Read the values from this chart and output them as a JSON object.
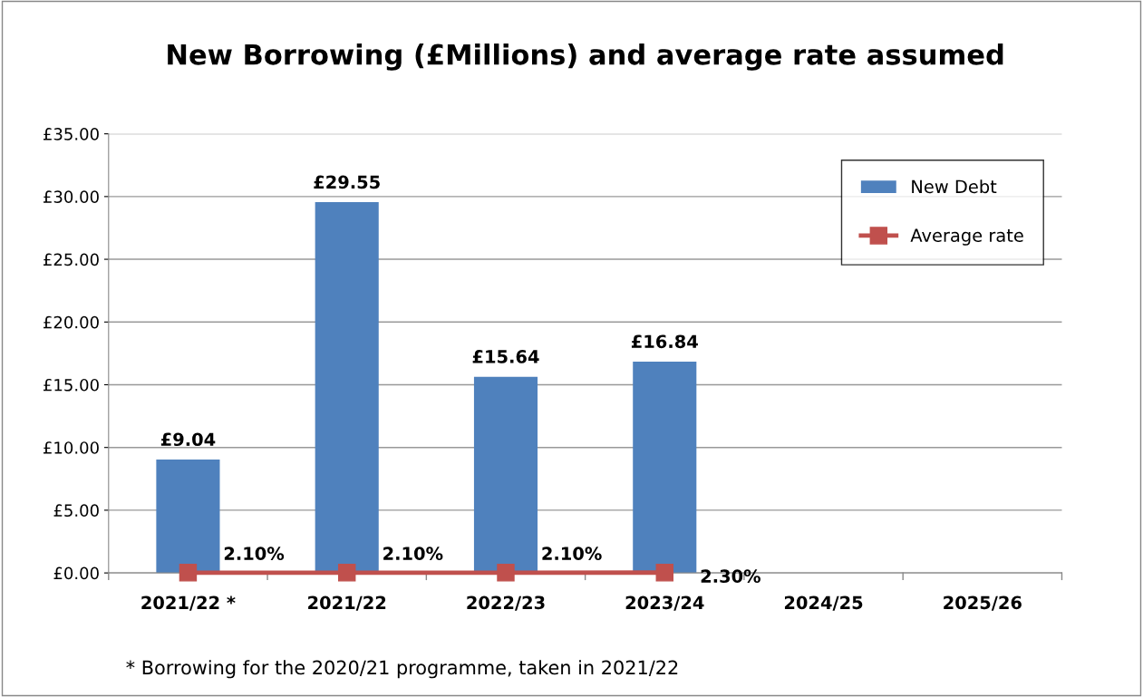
{
  "chart_data": {
    "type": "bar",
    "title": "New Borrowing (£Millions) and average rate assumed",
    "categories": [
      "2021/22 *",
      "2021/22",
      "2022/23",
      "2023/24",
      "2024/25",
      "2025/26"
    ],
    "series": [
      {
        "name": "New Debt",
        "color": "#4f81bd",
        "values": [
          9.04,
          29.55,
          15.64,
          16.84,
          null,
          null
        ],
        "value_labels": [
          "£9.04",
          "£29.55",
          "£15.64",
          "£16.84",
          null,
          null
        ]
      },
      {
        "name": "Average rate",
        "type": "line",
        "color": "#c0504d",
        "values": [
          0.021,
          0.021,
          0.021,
          0.023,
          null,
          null
        ],
        "value_labels": [
          "2.10%",
          "2.10%",
          "2.10%",
          "2.30%",
          null,
          null
        ]
      }
    ],
    "ylim": [
      0,
      35
    ],
    "yticks": [
      {
        "value": 0,
        "label": "£0.00"
      },
      {
        "value": 5,
        "label": "£5.00"
      },
      {
        "value": 10,
        "label": "£10.00"
      },
      {
        "value": 15,
        "label": "£15.00"
      },
      {
        "value": 20,
        "label": "£20.00"
      },
      {
        "value": 25,
        "label": "£25.00"
      },
      {
        "value": 30,
        "label": "£30.00"
      },
      {
        "value": 35,
        "label": "£35.00"
      }
    ],
    "grid": "y",
    "legend": "top right",
    "marker": "square",
    "annotations": [
      "* Borrowing for the 2020/21 programme, taken in 2021/22"
    ]
  }
}
